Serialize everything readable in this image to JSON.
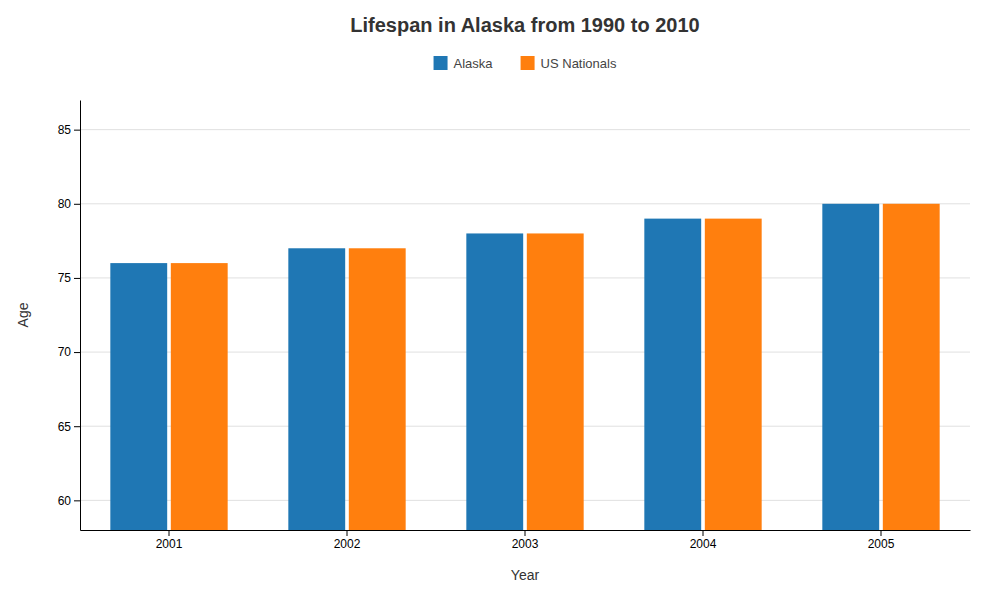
{
  "chart_data": {
    "type": "bar",
    "title": "Lifespan in Alaska from 1990 to 2010",
    "xlabel": "Year",
    "ylabel": "Age",
    "categories": [
      "2001",
      "2002",
      "2003",
      "2004",
      "2005"
    ],
    "series": [
      {
        "name": "Alaska",
        "values": [
          76,
          77,
          78,
          79,
          80
        ]
      },
      {
        "name": "US Nationals",
        "values": [
          76,
          77,
          78,
          79,
          80
        ]
      }
    ],
    "ylim": [
      58,
      87
    ],
    "yticks": [
      60,
      65,
      70,
      75,
      80,
      85
    ],
    "grid": true,
    "legend": "top"
  }
}
